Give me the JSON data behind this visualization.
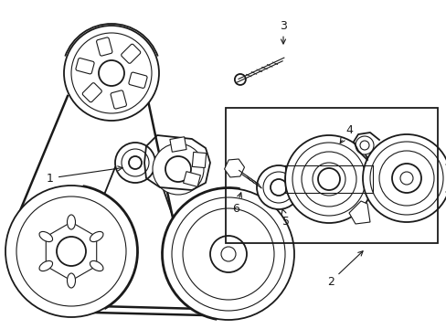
{
  "bg_color": "#ffffff",
  "line_color": "#1a1a1a",
  "line_width": 1.3,
  "thin_line": 0.8,
  "fig_width": 4.89,
  "fig_height": 3.6,
  "dpi": 100,
  "font_size": 9
}
